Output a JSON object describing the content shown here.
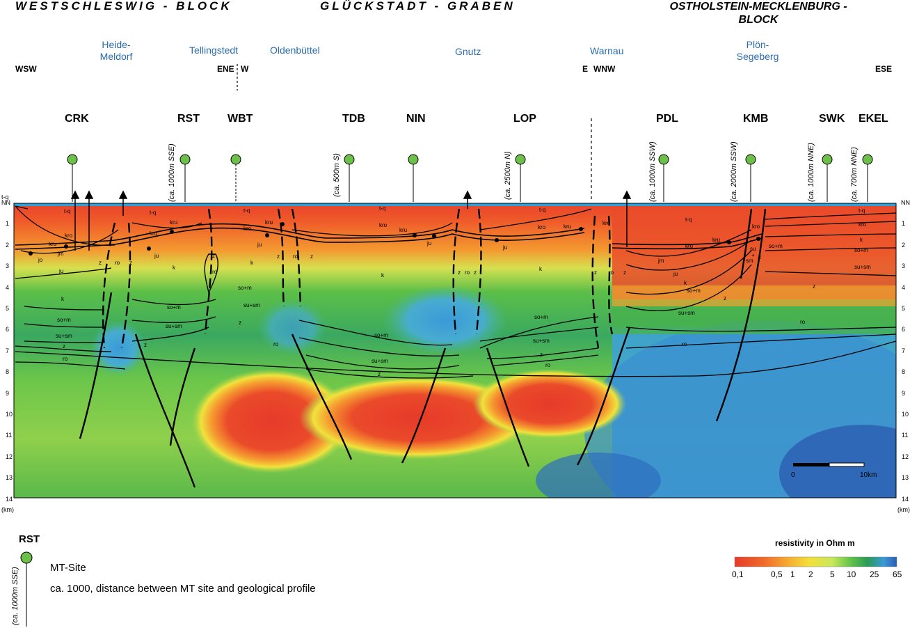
{
  "blocks": {
    "left": "WESTSCHLESWIG - BLOCK",
    "middle": "GLÜCKSTADT - GRABEN",
    "right_line1": "OSTHOLSTEIN-MECKLENBURG -",
    "right_line2": "BLOCK"
  },
  "localities": {
    "heide_line1": "Heide-",
    "heide_line2": "Meldorf",
    "tellingstedt": "Tellingstedt",
    "oldenbuettel": "Oldenbüttel",
    "gnutz": "Gnutz",
    "warnau": "Warnau",
    "ploen_line1": "Plön-",
    "ploen_line2": "Segeberg"
  },
  "directions": {
    "wsw": "WSW",
    "ene": "ENE",
    "w": "W",
    "e": "E",
    "wnw": "WNW",
    "ese": "ESE"
  },
  "sites": {
    "crk": "CRK",
    "rst": "RST",
    "wbt": "WBT",
    "tdb": "TDB",
    "nin": "NIN",
    "lop": "LOP",
    "pdl": "PDL",
    "kmb": "KMB",
    "swk": "SWK",
    "ekel": "EKEL"
  },
  "distances": {
    "rst": "(ca. 1000m SSE)",
    "tdb": "(ca. 500m S)",
    "lop": "(ca. 2500m N)",
    "pdl": "(ca. 1000m SSW)",
    "kmb": "(ca. 2000m SSW)",
    "swk": "(ca. 1000m NNE)",
    "ekel": "(ca. 700m NNE)"
  },
  "depth_axis": {
    "top_label": "t-q",
    "nn": "NN",
    "ticks": [
      "1",
      "2",
      "3",
      "4",
      "5",
      "6",
      "7",
      "8",
      "9",
      "10",
      "11",
      "12",
      "13",
      "14"
    ],
    "unit": "(km)"
  },
  "layer_labels": {
    "tq": "t-q",
    "kro": "kro",
    "kru": "kru",
    "jm": "jm",
    "jo": "jo",
    "ju": "ju",
    "k": "k",
    "som": "so+m",
    "susm": "su+sm",
    "z": "z",
    "ro": "ro",
    "su": "su"
  },
  "scalebar": {
    "start": "0",
    "end": "10km"
  },
  "legend": {
    "site_code": "RST",
    "site_distance": "(ca. 1000m SSE)",
    "mt_site": "MT-Site",
    "distance_text": "ca. 1000, distance between MT site and geological profile"
  },
  "resistivity": {
    "title": "resistivity in Ohm m",
    "ticks": [
      "0,1",
      "0,5",
      "1",
      "2",
      "5",
      "10",
      "25",
      "65"
    ],
    "colors": [
      "#e63a2a",
      "#f06a2a",
      "#f5a830",
      "#f3e03a",
      "#c8e85a",
      "#5fc24a",
      "#2a9a55",
      "#3a9ad8",
      "#2a5cb0"
    ]
  }
}
